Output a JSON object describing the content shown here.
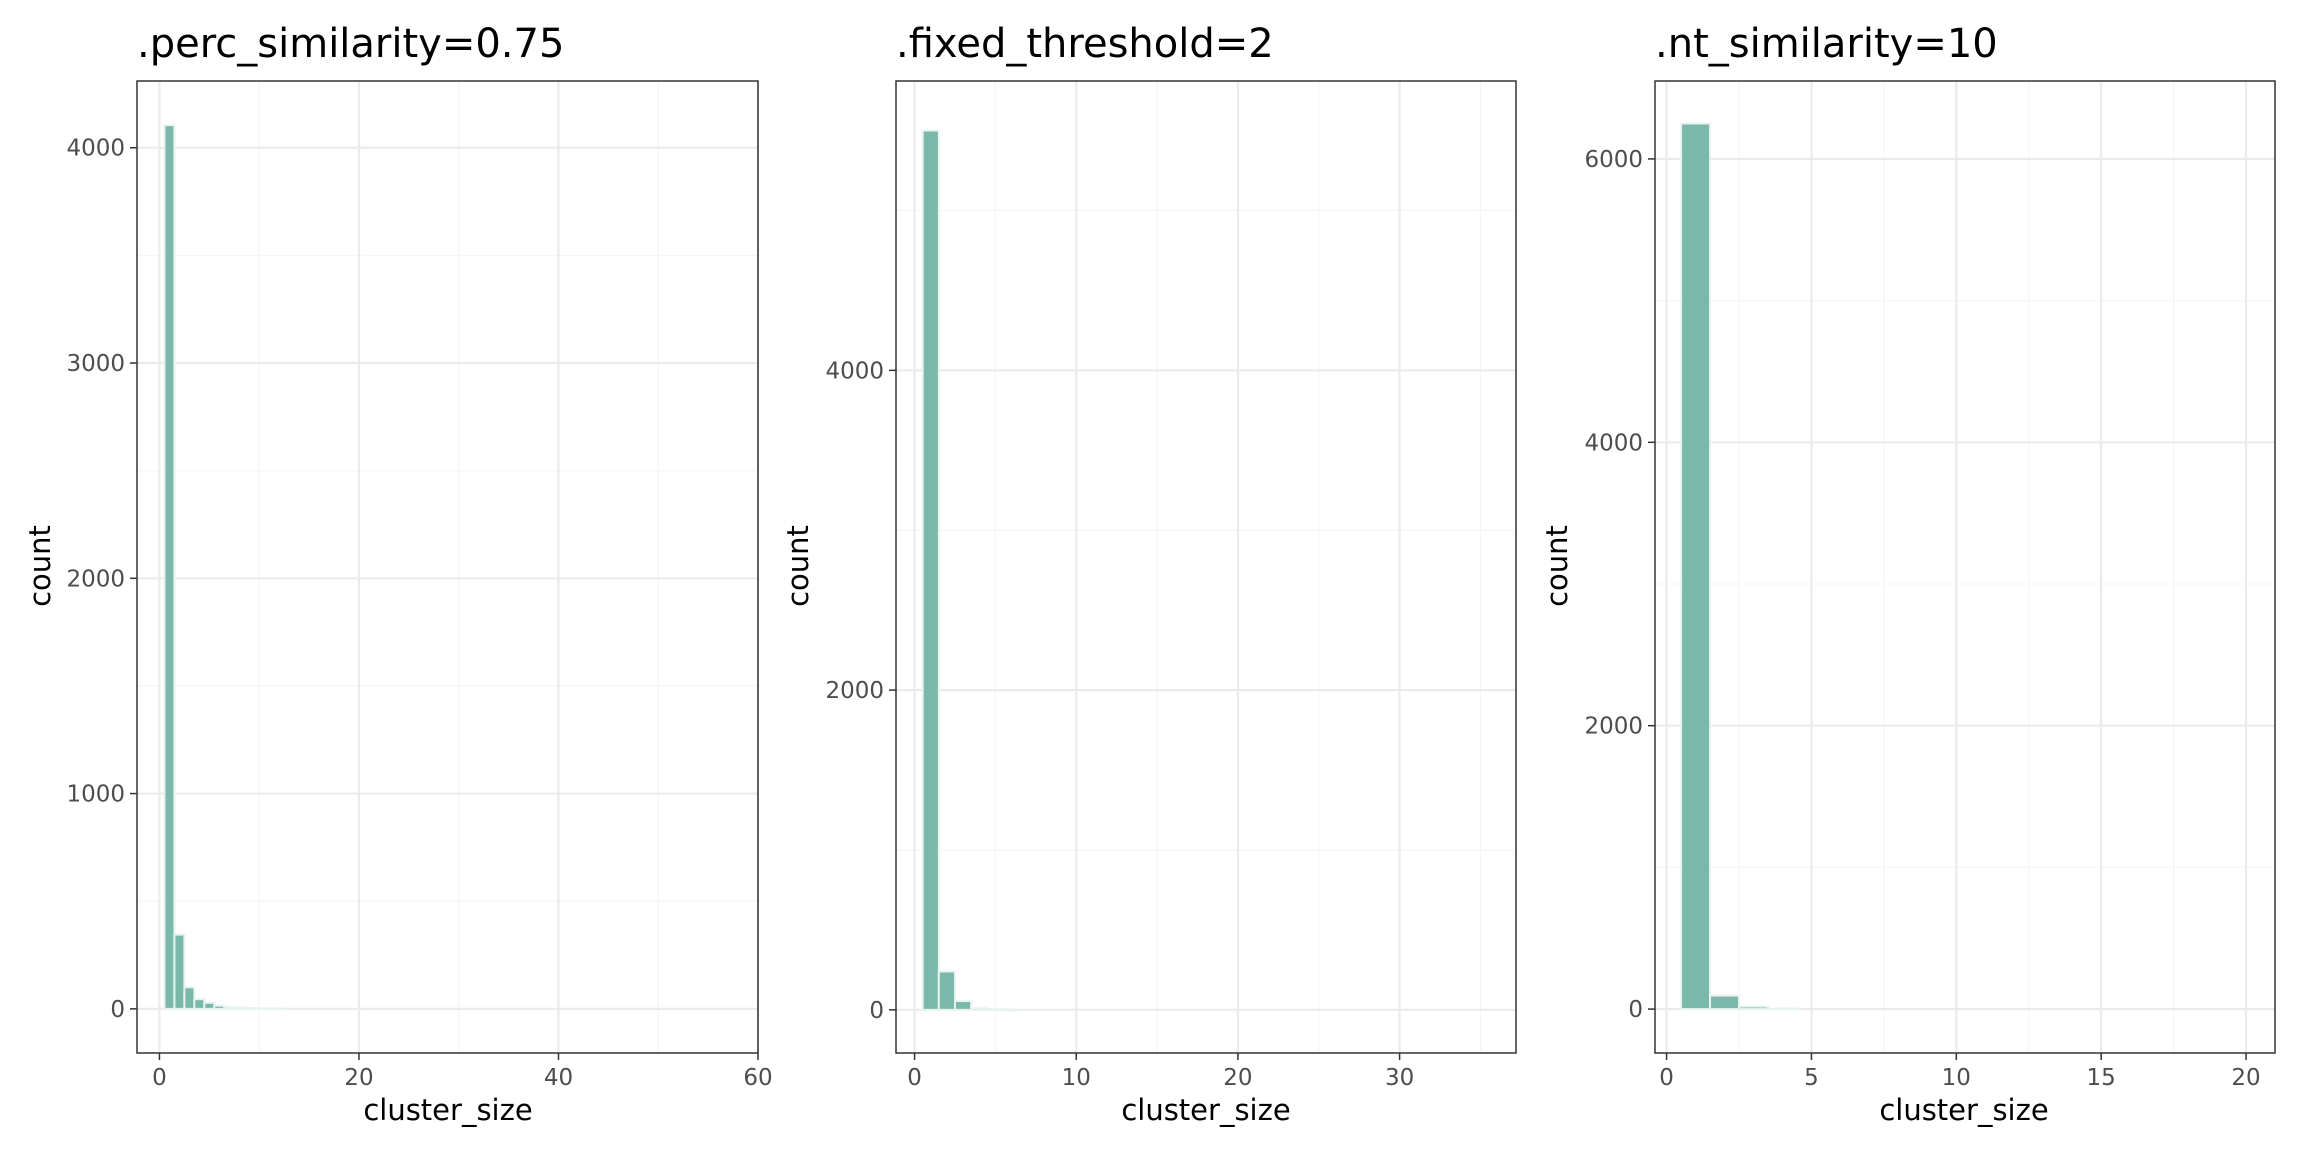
{
  "chart_data": [
    {
      "type": "bar",
      "title": ".perc_similarity=0.75",
      "xlabel": "cluster_size",
      "ylabel": "count",
      "xlim": [
        -2.25,
        60
      ],
      "ylim": [
        -205,
        4310
      ],
      "x_ticks": [
        0,
        20,
        40,
        60
      ],
      "x_tick_labels": [
        "0",
        "20",
        "40",
        "60"
      ],
      "y_ticks": [
        0,
        1000,
        2000,
        3000,
        4000
      ],
      "y_tick_labels": [
        "0",
        "1000",
        "2000",
        "3000",
        "4000"
      ],
      "grid": true,
      "bin_width": 1,
      "bars": [
        {
          "x": 1,
          "count": 4105
        },
        {
          "x": 2,
          "count": 345
        },
        {
          "x": 3,
          "count": 100
        },
        {
          "x": 4,
          "count": 45
        },
        {
          "x": 5,
          "count": 28
        },
        {
          "x": 6,
          "count": 15
        },
        {
          "x": 7,
          "count": 8
        },
        {
          "x": 8,
          "count": 6
        },
        {
          "x": 9,
          "count": 4
        },
        {
          "x": 10,
          "count": 3
        },
        {
          "x": 11,
          "count": 2
        },
        {
          "x": 12,
          "count": 2
        }
      ]
    },
    {
      "type": "bar",
      "title": ".fixed_threshold=2",
      "xlabel": "cluster_size",
      "ylabel": "count",
      "xlim": [
        -1.15,
        37.2
      ],
      "ylim": [
        -270,
        5810
      ],
      "x_ticks": [
        0,
        10,
        20,
        30
      ],
      "x_tick_labels": [
        "0",
        "10",
        "20",
        "30"
      ],
      "y_ticks": [
        0,
        2000,
        4000
      ],
      "y_tick_labels": [
        "0",
        "2000",
        "4000"
      ],
      "grid": true,
      "bin_width": 1,
      "bars": [
        {
          "x": 1,
          "count": 5500
        },
        {
          "x": 2,
          "count": 240
        },
        {
          "x": 3,
          "count": 55
        },
        {
          "x": 4,
          "count": 10
        },
        {
          "x": 5,
          "count": 4
        },
        {
          "x": 6,
          "count": 2
        }
      ]
    },
    {
      "type": "bar",
      "title": ".nt_similarity=10",
      "xlabel": "cluster_size",
      "ylabel": "count",
      "xlim": [
        -0.4,
        21.0
      ],
      "ylim": [
        -310,
        6550
      ],
      "x_ticks": [
        0,
        5,
        10,
        15,
        20
      ],
      "x_tick_labels": [
        "0",
        "5",
        "10",
        "15",
        "20"
      ],
      "y_ticks": [
        0,
        2000,
        4000,
        6000
      ],
      "y_tick_labels": [
        "0",
        "2000",
        "4000",
        "6000"
      ],
      "grid": true,
      "bin_width": 1,
      "bars": [
        {
          "x": 1,
          "count": 6250
        },
        {
          "x": 2,
          "count": 95
        },
        {
          "x": 3,
          "count": 18
        },
        {
          "x": 4,
          "count": 4
        }
      ]
    }
  ]
}
